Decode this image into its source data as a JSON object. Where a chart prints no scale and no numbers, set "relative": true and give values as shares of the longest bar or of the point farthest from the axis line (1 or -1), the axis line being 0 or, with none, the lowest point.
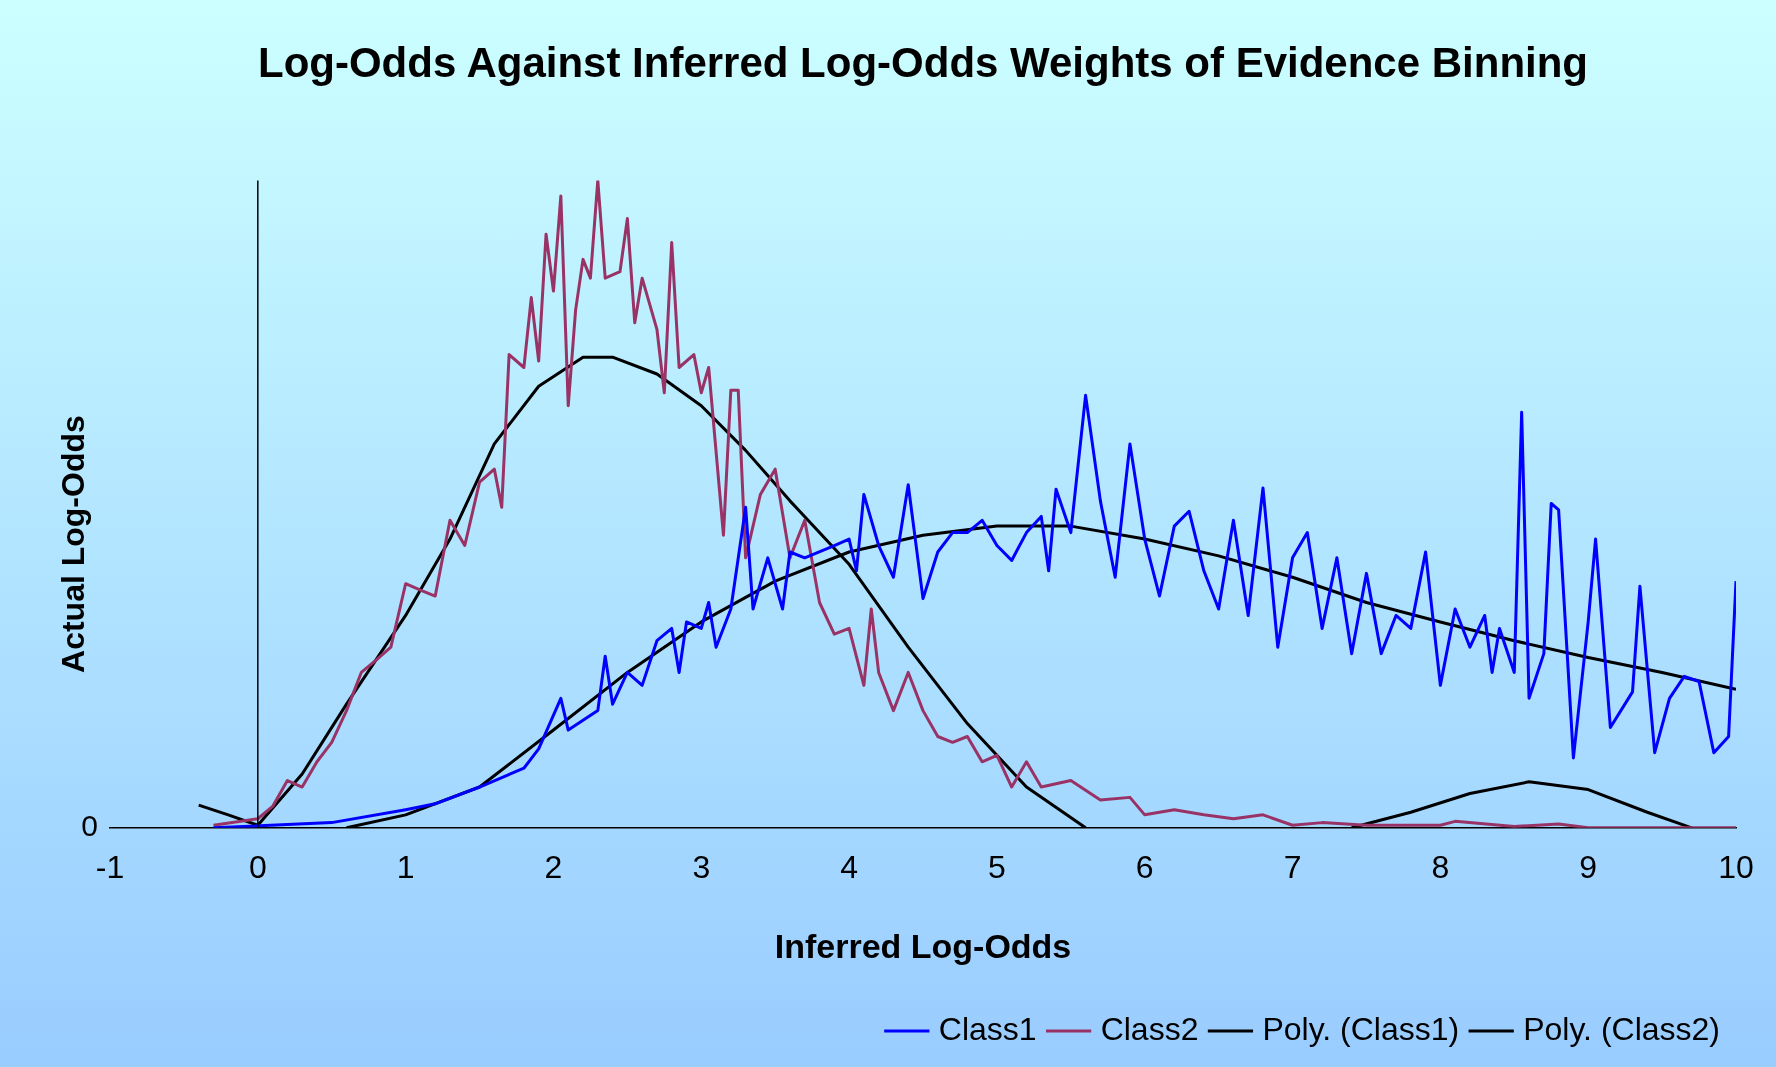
{
  "chart_data": {
    "type": "line",
    "title": "Log-Odds Against Inferred Log-Odds Weights of Evidence Binning",
    "xlabel": "Inferred Log-Odds",
    "ylabel": "Actual Log-Odds",
    "relative": true,
    "xlim": [
      -1,
      10
    ],
    "xticks": [
      -1,
      0,
      1,
      2,
      3,
      4,
      5,
      6,
      7,
      8,
      9,
      10
    ],
    "legend": "bottom right",
    "marker": "none",
    "line_style": "solid",
    "ref_lines": [
      {
        "axis": "x",
        "value": 0,
        "label": null,
        "color": "#000000"
      }
    ],
    "annotations": [
      "0"
    ],
    "series": [
      {
        "name": "Class1",
        "color": "#0000ff",
        "x": [
          -0.3,
          0.5,
          1.0,
          1.2,
          1.5,
          1.8,
          1.9,
          2.05,
          2.1,
          2.3,
          2.35,
          2.4,
          2.5,
          2.6,
          2.7,
          2.8,
          2.85,
          2.9,
          3.0,
          3.05,
          3.1,
          3.2,
          3.3,
          3.35,
          3.45,
          3.55,
          3.6,
          3.7,
          3.9,
          4.0,
          4.05,
          4.1,
          4.2,
          4.3,
          4.4,
          4.5,
          4.6,
          4.7,
          4.8,
          4.9,
          5.0,
          5.1,
          5.2,
          5.3,
          5.35,
          5.4,
          5.5,
          5.6,
          5.7,
          5.8,
          5.9,
          6.0,
          6.1,
          6.2,
          6.3,
          6.4,
          6.5,
          6.6,
          6.7,
          6.8,
          6.9,
          7.0,
          7.1,
          7.2,
          7.3,
          7.4,
          7.5,
          7.6,
          7.7,
          7.8,
          7.9,
          8.0,
          8.1,
          8.2,
          8.3,
          8.35,
          8.4,
          8.5,
          8.55,
          8.6,
          8.7,
          8.75,
          8.8,
          8.9,
          9.0,
          9.05,
          9.15,
          9.3,
          9.35,
          9.45,
          9.55,
          9.65,
          9.75,
          9.85,
          9.95,
          10.0
        ],
        "values": [
          0,
          0.008,
          0.028,
          0.037,
          0.063,
          0.092,
          0.122,
          0.2,
          0.151,
          0.181,
          0.265,
          0.191,
          0.24,
          0.22,
          0.289,
          0.308,
          0.24,
          0.318,
          0.308,
          0.348,
          0.279,
          0.338,
          0.495,
          0.338,
          0.417,
          0.338,
          0.426,
          0.417,
          0.436,
          0.446,
          0.397,
          0.515,
          0.436,
          0.387,
          0.53,
          0.354,
          0.426,
          0.456,
          0.456,
          0.475,
          0.436,
          0.413,
          0.456,
          0.481,
          0.397,
          0.523,
          0.456,
          0.668,
          0.505,
          0.387,
          0.593,
          0.446,
          0.358,
          0.466,
          0.489,
          0.397,
          0.338,
          0.475,
          0.328,
          0.525,
          0.279,
          0.417,
          0.456,
          0.308,
          0.417,
          0.269,
          0.393,
          0.269,
          0.328,
          0.308,
          0.426,
          0.22,
          0.338,
          0.279,
          0.328,
          0.24,
          0.308,
          0.24,
          0.642,
          0.2,
          0.269,
          0.501,
          0.491,
          0.108,
          0.318,
          0.446,
          0.155,
          0.21,
          0.373,
          0.116,
          0.2,
          0.234,
          0.226,
          0.116,
          0.141,
          0.381
        ]
      },
      {
        "name": "Class2",
        "color": "#993366",
        "x": [
          -0.3,
          0,
          0.1,
          0.2,
          0.3,
          0.4,
          0.5,
          0.6,
          0.7,
          0.8,
          0.9,
          1.0,
          1.1,
          1.2,
          1.3,
          1.4,
          1.5,
          1.6,
          1.65,
          1.7,
          1.8,
          1.85,
          1.9,
          1.95,
          2.0,
          2.05,
          2.1,
          2.15,
          2.2,
          2.25,
          2.3,
          2.35,
          2.45,
          2.5,
          2.55,
          2.6,
          2.7,
          2.75,
          2.8,
          2.85,
          2.95,
          3.0,
          3.05,
          3.15,
          3.2,
          3.25,
          3.3,
          3.4,
          3.5,
          3.6,
          3.7,
          3.8,
          3.9,
          4.0,
          4.1,
          4.15,
          4.2,
          4.3,
          4.4,
          4.5,
          4.6,
          4.7,
          4.8,
          4.9,
          5.0,
          5.1,
          5.2,
          5.3,
          5.5,
          5.7,
          5.9,
          6.0,
          6.2,
          6.4,
          6.6,
          6.8,
          7.0,
          7.2,
          7.5,
          8.0,
          8.1,
          8.5,
          8.8,
          9.0,
          10.0
        ],
        "values": [
          0.004,
          0.014,
          0.033,
          0.073,
          0.063,
          0.102,
          0.132,
          0.181,
          0.24,
          0.259,
          0.279,
          0.377,
          0.367,
          0.358,
          0.475,
          0.436,
          0.534,
          0.554,
          0.495,
          0.731,
          0.711,
          0.819,
          0.721,
          0.917,
          0.829,
          0.976,
          0.652,
          0.8,
          0.878,
          0.849,
          1,
          0.849,
          0.859,
          0.941,
          0.78,
          0.849,
          0.77,
          0.672,
          0.904,
          0.711,
          0.731,
          0.672,
          0.711,
          0.452,
          0.676,
          0.676,
          0.417,
          0.515,
          0.554,
          0.417,
          0.475,
          0.348,
          0.299,
          0.308,
          0.22,
          0.338,
          0.24,
          0.181,
          0.24,
          0.181,
          0.141,
          0.132,
          0.141,
          0.102,
          0.112,
          0.063,
          0.102,
          0.063,
          0.073,
          0.043,
          0.047,
          0.02,
          0.028,
          0.02,
          0.014,
          0.02,
          0.004,
          0.008,
          0.004,
          0.004,
          0.01,
          0.002,
          0.006,
          0,
          0
        ]
      },
      {
        "name": "Poly. (Class1)",
        "color": "#000000",
        "x": [
          0.6,
          1.0,
          1.5,
          2.0,
          2.5,
          3.0,
          3.5,
          4.0,
          4.5,
          5.0,
          5.5,
          6.0,
          6.5,
          7.0,
          7.5,
          8.0,
          8.5,
          9.0,
          9.5,
          10.0
        ],
        "values": [
          0,
          0.02,
          0.063,
          0.151,
          0.24,
          0.318,
          0.381,
          0.426,
          0.452,
          0.466,
          0.466,
          0.446,
          0.42,
          0.387,
          0.348,
          0.318,
          0.289,
          0.263,
          0.24,
          0.214
        ]
      },
      {
        "name": "Poly. (Class2)",
        "color": "#000000",
        "x": [
          -0.4,
          -0.2,
          0,
          0.3,
          0.6,
          1.0,
          1.3,
          1.6,
          1.9,
          2.2,
          2.4,
          2.7,
          3.0,
          3.3,
          3.6,
          4.0,
          4.4,
          4.8,
          5.2,
          5.6,
          6.5,
          7.4,
          7.8,
          8.2,
          8.6,
          9.0,
          9.4,
          9.7
        ],
        "values": [
          0.035,
          0.02,
          0.004,
          0.083,
          0.191,
          0.328,
          0.446,
          0.593,
          0.682,
          0.727,
          0.727,
          0.701,
          0.652,
          0.583,
          0.505,
          0.407,
          0.279,
          0.161,
          0.063,
          0,
          null,
          0,
          0.024,
          0.053,
          0.071,
          0.059,
          0.024,
          0
        ]
      }
    ]
  }
}
